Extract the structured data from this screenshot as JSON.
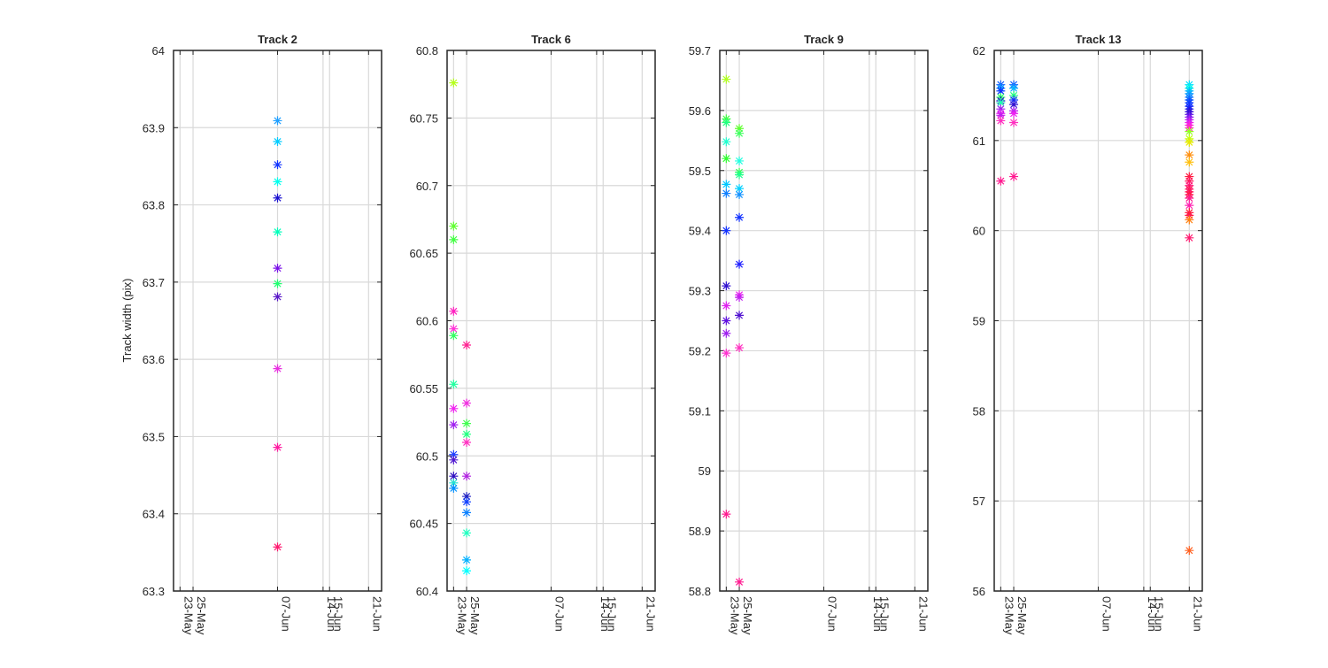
{
  "figure": {
    "ylabel": "Track width (pix)"
  },
  "chart_data": [
    {
      "type": "scatter",
      "title": "Track 2",
      "ylabel": "Track width (pix)",
      "ylim": [
        63.3,
        64
      ],
      "yticks": [
        "63.3",
        "63.4",
        "63.5",
        "63.6",
        "63.7",
        "63.8",
        "63.9",
        "64"
      ],
      "xlim": [
        "22-May",
        "23-Jun"
      ],
      "xticks": [
        "23-May",
        "25-May",
        "07-Jun",
        "14-Jun",
        "15-Jun",
        "21-Jun"
      ],
      "grid": true,
      "marker": "*",
      "points": [
        {
          "x": "07-Jun",
          "y": 63.909,
          "color": "#1f9fff"
        },
        {
          "x": "07-Jun",
          "y": 63.882,
          "color": "#00ccff"
        },
        {
          "x": "07-Jun",
          "y": 63.852,
          "color": "#1033ff"
        },
        {
          "x": "07-Jun",
          "y": 63.83,
          "color": "#00ffee"
        },
        {
          "x": "07-Jun",
          "y": 63.809,
          "color": "#1a10d0"
        },
        {
          "x": "07-Jun",
          "y": 63.765,
          "color": "#00ffbb"
        },
        {
          "x": "07-Jun",
          "y": 63.718,
          "color": "#7a10e8"
        },
        {
          "x": "07-Jun",
          "y": 63.698,
          "color": "#20ff70"
        },
        {
          "x": "07-Jun",
          "y": 63.681,
          "color": "#5a18c8"
        },
        {
          "x": "07-Jun",
          "y": 63.588,
          "color": "#e830e0"
        },
        {
          "x": "07-Jun",
          "y": 63.486,
          "color": "#ff1aa0"
        },
        {
          "x": "07-Jun",
          "y": 63.357,
          "color": "#ff1a70"
        }
      ]
    },
    {
      "type": "scatter",
      "title": "Track 6",
      "ylim": [
        60.4,
        60.8
      ],
      "yticks": [
        "60.4",
        "60.45",
        "60.5",
        "60.55",
        "60.6",
        "60.65",
        "60.7",
        "60.75",
        "60.8"
      ],
      "xlim": [
        "22-May",
        "23-Jun"
      ],
      "xticks": [
        "23-May",
        "25-May",
        "07-Jun",
        "14-Jun",
        "15-Jun",
        "21-Jun"
      ],
      "grid": true,
      "marker": "*",
      "points": [
        {
          "x": "23-May",
          "y": 60.776,
          "color": "#b5ff1a"
        },
        {
          "x": "23-May",
          "y": 60.67,
          "color": "#60ff30"
        },
        {
          "x": "23-May",
          "y": 60.66,
          "color": "#40ff40"
        },
        {
          "x": "23-May",
          "y": 60.607,
          "color": "#ff20c0"
        },
        {
          "x": "23-May",
          "y": 60.594,
          "color": "#ff30d8"
        },
        {
          "x": "23-May",
          "y": 60.589,
          "color": "#30ff60"
        },
        {
          "x": "23-May",
          "y": 60.553,
          "color": "#20ffa0"
        },
        {
          "x": "23-May",
          "y": 60.535,
          "color": "#f020f0"
        },
        {
          "x": "23-May",
          "y": 60.523,
          "color": "#a020f0"
        },
        {
          "x": "23-May",
          "y": 60.501,
          "color": "#2040ff"
        },
        {
          "x": "23-May",
          "y": 60.497,
          "color": "#5018d0"
        },
        {
          "x": "23-May",
          "y": 60.485,
          "color": "#3010c0"
        },
        {
          "x": "23-May",
          "y": 60.48,
          "color": "#20e0d0"
        },
        {
          "x": "23-May",
          "y": 60.476,
          "color": "#0090ff"
        },
        {
          "x": "25-May",
          "y": 60.582,
          "color": "#ff2090"
        },
        {
          "x": "25-May",
          "y": 60.539,
          "color": "#f030e0"
        },
        {
          "x": "25-May",
          "y": 60.524,
          "color": "#40ff50"
        },
        {
          "x": "25-May",
          "y": 60.516,
          "color": "#20ff80"
        },
        {
          "x": "25-May",
          "y": 60.51,
          "color": "#ff30c0"
        },
        {
          "x": "25-May",
          "y": 60.485,
          "color": "#b020e0"
        },
        {
          "x": "25-May",
          "y": 60.47,
          "color": "#2020c0"
        },
        {
          "x": "25-May",
          "y": 60.466,
          "color": "#1040ff"
        },
        {
          "x": "25-May",
          "y": 60.458,
          "color": "#0a80ff"
        },
        {
          "x": "25-May",
          "y": 60.443,
          "color": "#20ffc0"
        },
        {
          "x": "25-May",
          "y": 60.423,
          "color": "#00b0ff"
        },
        {
          "x": "25-May",
          "y": 60.415,
          "color": "#00ffff"
        }
      ]
    },
    {
      "type": "scatter",
      "title": "Track 9",
      "ylim": [
        58.8,
        59.7
      ],
      "yticks": [
        "58.8",
        "58.9",
        "59",
        "59.1",
        "59.2",
        "59.3",
        "59.4",
        "59.5",
        "59.6",
        "59.7"
      ],
      "xlim": [
        "22-May",
        "23-Jun"
      ],
      "xticks": [
        "23-May",
        "25-May",
        "07-Jun",
        "14-Jun",
        "15-Jun",
        "21-Jun"
      ],
      "grid": true,
      "marker": "*",
      "points": [
        {
          "x": "23-May",
          "y": 59.652,
          "color": "#b0ff20"
        },
        {
          "x": "23-May",
          "y": 59.586,
          "color": "#40ff40"
        },
        {
          "x": "23-May",
          "y": 59.58,
          "color": "#20ff80"
        },
        {
          "x": "23-May",
          "y": 59.548,
          "color": "#20ffd0"
        },
        {
          "x": "23-May",
          "y": 59.52,
          "color": "#30ff30"
        },
        {
          "x": "23-May",
          "y": 59.477,
          "color": "#00c8ff"
        },
        {
          "x": "23-May",
          "y": 59.462,
          "color": "#1080ff"
        },
        {
          "x": "23-May",
          "y": 59.4,
          "color": "#1030ff"
        },
        {
          "x": "23-May",
          "y": 59.308,
          "color": "#3010d0"
        },
        {
          "x": "23-May",
          "y": 59.275,
          "color": "#e020f0"
        },
        {
          "x": "23-May",
          "y": 59.25,
          "color": "#6010e0"
        },
        {
          "x": "23-May",
          "y": 59.229,
          "color": "#a020f0"
        },
        {
          "x": "23-May",
          "y": 59.196,
          "color": "#ff30d0"
        },
        {
          "x": "23-May",
          "y": 58.928,
          "color": "#ff1a90"
        },
        {
          "x": "25-May",
          "y": 59.57,
          "color": "#60ff30"
        },
        {
          "x": "25-May",
          "y": 59.562,
          "color": "#40ff60"
        },
        {
          "x": "25-May",
          "y": 59.516,
          "color": "#20ffe0"
        },
        {
          "x": "25-May",
          "y": 59.497,
          "color": "#30ff50"
        },
        {
          "x": "25-May",
          "y": 59.493,
          "color": "#20ff90"
        },
        {
          "x": "25-May",
          "y": 59.47,
          "color": "#00d0ff"
        },
        {
          "x": "25-May",
          "y": 59.46,
          "color": "#1090ff"
        },
        {
          "x": "25-May",
          "y": 59.422,
          "color": "#1030ff"
        },
        {
          "x": "25-May",
          "y": 59.344,
          "color": "#2020ff"
        },
        {
          "x": "25-May",
          "y": 59.293,
          "color": "#f020f0"
        },
        {
          "x": "25-May",
          "y": 59.289,
          "color": "#c020f0"
        },
        {
          "x": "25-May",
          "y": 59.259,
          "color": "#5010d0"
        },
        {
          "x": "25-May",
          "y": 59.205,
          "color": "#ff30c0"
        },
        {
          "x": "25-May",
          "y": 58.815,
          "color": "#ff1a90"
        }
      ]
    },
    {
      "type": "scatter",
      "title": "Track 13",
      "ylim": [
        56,
        62
      ],
      "yticks": [
        "56",
        "57",
        "58",
        "59",
        "60",
        "61",
        "62"
      ],
      "xlim": [
        "22-May",
        "23-Jun"
      ],
      "xticks": [
        "23-May",
        "25-May",
        "07-Jun",
        "14-Jun",
        "15-Jun",
        "21-Jun"
      ],
      "grid": true,
      "marker": "*",
      "points": [
        {
          "x": "23-May",
          "y": 61.62,
          "color": "#1060ff"
        },
        {
          "x": "23-May",
          "y": 61.58,
          "color": "#00a0ff"
        },
        {
          "x": "23-May",
          "y": 61.55,
          "color": "#1030ff"
        },
        {
          "x": "23-May",
          "y": 61.48,
          "color": "#20ff60"
        },
        {
          "x": "23-May",
          "y": 61.44,
          "color": "#3010d0"
        },
        {
          "x": "23-May",
          "y": 61.42,
          "color": "#20ffb0"
        },
        {
          "x": "23-May",
          "y": 61.35,
          "color": "#a020f0"
        },
        {
          "x": "23-May",
          "y": 61.3,
          "color": "#f020f0"
        },
        {
          "x": "23-May",
          "y": 61.28,
          "color": "#c020f0"
        },
        {
          "x": "23-May",
          "y": 61.22,
          "color": "#ff30c0"
        },
        {
          "x": "23-May",
          "y": 60.55,
          "color": "#ff1a90"
        },
        {
          "x": "25-May",
          "y": 61.62,
          "color": "#1060ff"
        },
        {
          "x": "25-May",
          "y": 61.58,
          "color": "#00b0ff"
        },
        {
          "x": "25-May",
          "y": 61.5,
          "color": "#20ff80"
        },
        {
          "x": "25-May",
          "y": 61.45,
          "color": "#1030ff"
        },
        {
          "x": "25-May",
          "y": 61.4,
          "color": "#3010d0"
        },
        {
          "x": "25-May",
          "y": 61.33,
          "color": "#a020f0"
        },
        {
          "x": "25-May",
          "y": 61.3,
          "color": "#f020f0"
        },
        {
          "x": "25-May",
          "y": 61.2,
          "color": "#ff30c0"
        },
        {
          "x": "25-May",
          "y": 60.6,
          "color": "#ff1a90"
        },
        {
          "x": "21-Jun",
          "y": 61.62,
          "color": "#00e0ff"
        },
        {
          "x": "21-Jun",
          "y": 61.58,
          "color": "#00ffe0"
        },
        {
          "x": "21-Jun",
          "y": 61.55,
          "color": "#00c0ff"
        },
        {
          "x": "21-Jun",
          "y": 61.52,
          "color": "#10a0ff"
        },
        {
          "x": "21-Jun",
          "y": 61.48,
          "color": "#1080ff"
        },
        {
          "x": "21-Jun",
          "y": 61.45,
          "color": "#1060ff"
        },
        {
          "x": "21-Jun",
          "y": 61.42,
          "color": "#1040ff"
        },
        {
          "x": "21-Jun",
          "y": 61.38,
          "color": "#1030ff"
        },
        {
          "x": "21-Jun",
          "y": 61.35,
          "color": "#2020f0"
        },
        {
          "x": "21-Jun",
          "y": 61.32,
          "color": "#3010d0"
        },
        {
          "x": "21-Jun",
          "y": 61.29,
          "color": "#5010e0"
        },
        {
          "x": "21-Jun",
          "y": 61.26,
          "color": "#8020f0"
        },
        {
          "x": "21-Jun",
          "y": 61.23,
          "color": "#b020f0"
        },
        {
          "x": "21-Jun",
          "y": 61.2,
          "color": "#e020f0"
        },
        {
          "x": "21-Jun",
          "y": 61.17,
          "color": "#ff20e0"
        },
        {
          "x": "21-Jun",
          "y": 61.14,
          "color": "#ff30c0"
        },
        {
          "x": "21-Jun",
          "y": 61.1,
          "color": "#90ff20"
        },
        {
          "x": "21-Jun",
          "y": 61.02,
          "color": "#c0ff10"
        },
        {
          "x": "21-Jun",
          "y": 60.98,
          "color": "#e8e800"
        },
        {
          "x": "21-Jun",
          "y": 60.84,
          "color": "#ff9010"
        },
        {
          "x": "21-Jun",
          "y": 60.76,
          "color": "#ffc010"
        },
        {
          "x": "21-Jun",
          "y": 60.6,
          "color": "#ff1a40"
        },
        {
          "x": "21-Jun",
          "y": 60.55,
          "color": "#ff1a60"
        },
        {
          "x": "21-Jun",
          "y": 60.5,
          "color": "#ff1a80"
        },
        {
          "x": "21-Jun",
          "y": 60.46,
          "color": "#ff1a50"
        },
        {
          "x": "21-Jun",
          "y": 60.43,
          "color": "#ff1a70"
        },
        {
          "x": "21-Jun",
          "y": 60.4,
          "color": "#ff1a40"
        },
        {
          "x": "21-Jun",
          "y": 60.36,
          "color": "#ff1a90"
        },
        {
          "x": "21-Jun",
          "y": 60.28,
          "color": "#ff20b0"
        },
        {
          "x": "21-Jun",
          "y": 60.2,
          "color": "#ff1a30"
        },
        {
          "x": "21-Jun",
          "y": 60.17,
          "color": "#ff1a50"
        },
        {
          "x": "21-Jun",
          "y": 60.12,
          "color": "#ff8010"
        },
        {
          "x": "21-Jun",
          "y": 59.92,
          "color": "#ff1a70"
        },
        {
          "x": "21-Jun",
          "y": 56.45,
          "color": "#ff6020"
        }
      ]
    }
  ]
}
